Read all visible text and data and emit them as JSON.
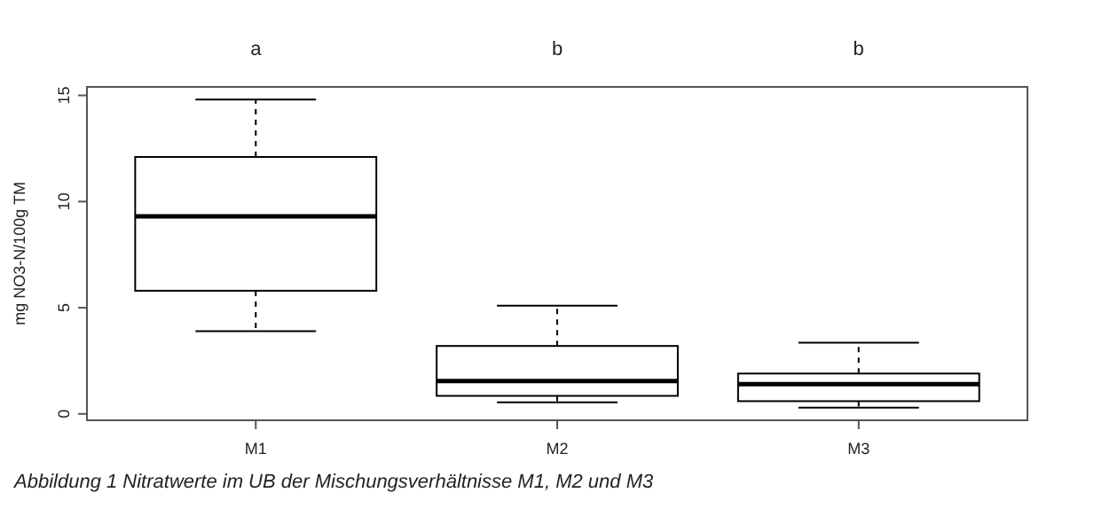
{
  "chart_data": {
    "type": "box",
    "ylabel": "mg NO3-N/100g TM",
    "categories": [
      "M1",
      "M2",
      "M3"
    ],
    "boxes": [
      {
        "low": 3.9,
        "q1": 5.8,
        "median": 9.3,
        "q3": 12.1,
        "high": 14.8
      },
      {
        "low": 0.55,
        "q1": 0.85,
        "median": 1.55,
        "q3": 3.2,
        "high": 5.1
      },
      {
        "low": 0.3,
        "q1": 0.6,
        "median": 1.4,
        "q3": 1.9,
        "high": 3.35
      }
    ],
    "ylim": [
      -0.3,
      15.4
    ],
    "yticks": [
      0,
      5,
      10,
      15
    ],
    "grid": false,
    "color": "#000000",
    "annotations": [
      "a",
      "b",
      "b",
      "Abbildung 1 Nitratwerte im UB der Mischungsverhältnisse M1, M2 und M3"
    ]
  }
}
